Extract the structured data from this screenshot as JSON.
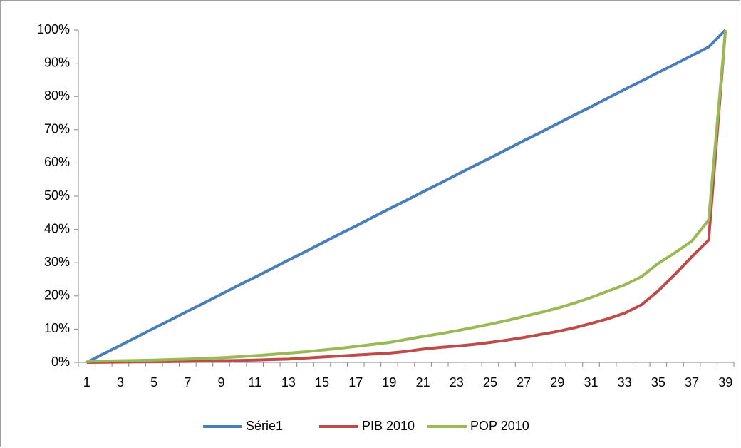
{
  "chart_data": {
    "type": "line",
    "categories": [
      "1",
      null,
      "3",
      null,
      "5",
      null,
      "7",
      null,
      "9",
      null,
      "11",
      null,
      "13",
      null,
      "15",
      null,
      "17",
      null,
      "19",
      null,
      "21",
      null,
      "23",
      null,
      "25",
      null,
      "27",
      null,
      "29",
      null,
      "31",
      null,
      "33",
      null,
      "35",
      null,
      "37",
      null,
      "39"
    ],
    "series": [
      {
        "name": "Série1",
        "color": "#4a7ebb",
        "values": [
          0,
          2.6,
          5.1,
          7.7,
          10.3,
          12.8,
          15.4,
          17.9,
          20.5,
          23.1,
          25.6,
          28.2,
          30.8,
          33.3,
          35.9,
          38.5,
          41.0,
          43.6,
          46.2,
          48.7,
          51.3,
          53.8,
          56.4,
          59.0,
          61.5,
          64.1,
          66.7,
          69.2,
          71.8,
          74.4,
          76.9,
          79.5,
          82.1,
          84.6,
          87.2,
          89.7,
          92.3,
          94.9,
          100
        ]
      },
      {
        "name": "PIB 2010",
        "color": "#be4b48",
        "values": [
          0,
          0.05,
          0.1,
          0.15,
          0.2,
          0.25,
          0.3,
          0.4,
          0.5,
          0.6,
          0.7,
          0.85,
          1.0,
          1.3,
          1.6,
          1.9,
          2.2,
          2.5,
          2.8,
          3.3,
          4.0,
          4.5,
          4.9,
          5.4,
          6.0,
          6.7,
          7.5,
          8.4,
          9.3,
          10.4,
          11.7,
          13.1,
          14.8,
          17.3,
          21.5,
          26.5,
          31.8,
          36.8,
          100
        ]
      },
      {
        "name": "POP 2010",
        "color": "#98b954",
        "values": [
          0.3,
          0.4,
          0.5,
          0.6,
          0.7,
          0.85,
          1.0,
          1.2,
          1.4,
          1.7,
          2.0,
          2.4,
          2.8,
          3.2,
          3.7,
          4.2,
          4.8,
          5.4,
          6.0,
          6.9,
          7.8,
          8.6,
          9.5,
          10.5,
          11.5,
          12.6,
          13.8,
          15.0,
          16.3,
          17.8,
          19.5,
          21.4,
          23.3,
          25.8,
          29.8,
          33.0,
          36.5,
          42.8,
          100
        ]
      }
    ],
    "ylim": [
      0,
      100
    ],
    "yticks": [
      {
        "value": 0,
        "label": "0%"
      },
      {
        "value": 10,
        "label": "10%"
      },
      {
        "value": 20,
        "label": "20%"
      },
      {
        "value": 30,
        "label": "30%"
      },
      {
        "value": 40,
        "label": "40%"
      },
      {
        "value": 50,
        "label": "50%"
      },
      {
        "value": 60,
        "label": "60%"
      },
      {
        "value": 70,
        "label": "70%"
      },
      {
        "value": 80,
        "label": "80%"
      },
      {
        "value": 90,
        "label": "90%"
      },
      {
        "value": 100,
        "label": "100%"
      }
    ],
    "grid": false,
    "legend": "bottom"
  }
}
